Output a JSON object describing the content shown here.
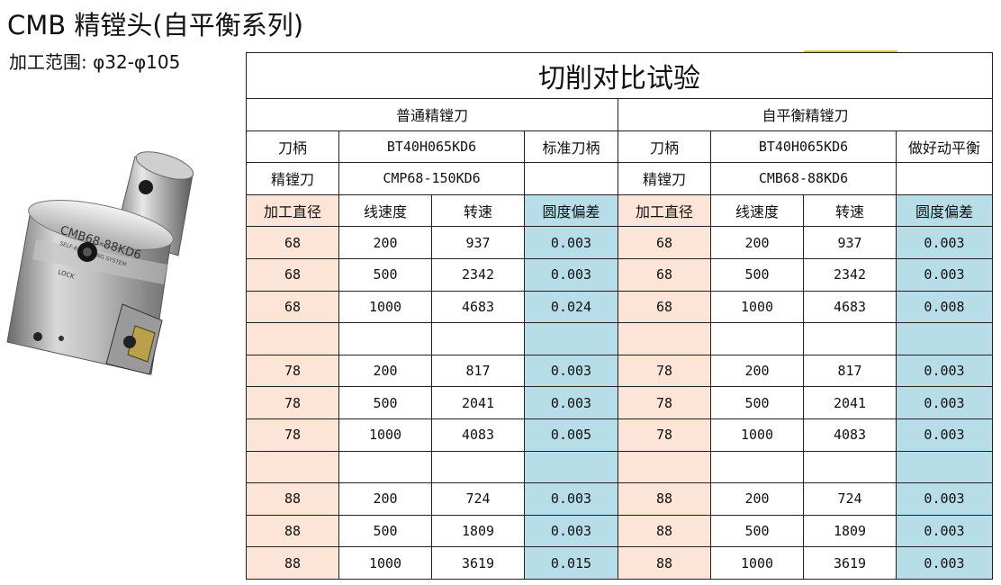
{
  "header": {
    "title": "CMB 精镗头(自平衡系列)",
    "range": "加工范围: φ32-φ105"
  },
  "product_image": {
    "engraved_text": [
      "CMB68-88KD6",
      "SELF-BALANCING SYSTEM",
      "LOCK"
    ]
  },
  "table": {
    "title": "切削对比试验",
    "left_group": "普通精镗刀",
    "right_group": "自平衡精镗刀",
    "left": {
      "holder_label": "刀柄",
      "holder_value": "BT40H065KD6",
      "holder_note": "标准刀柄",
      "cutter_label": "精镗刀",
      "cutter_value": "CMP68-150KD6",
      "cutter_note": ""
    },
    "right": {
      "holder_label": "刀柄",
      "holder_value": "BT40H065KD6",
      "holder_note": "做好动平衡",
      "cutter_label": "精镗刀",
      "cutter_value": "CMB68-88KD6",
      "cutter_note": ""
    },
    "columns": [
      "加工直径",
      "线速度",
      "转速",
      "圆度偏差",
      "加工直径",
      "线速度",
      "转速",
      "圆度偏差"
    ],
    "rows": [
      [
        "68",
        "200",
        "937",
        "0.003",
        "68",
        "200",
        "937",
        "0.003"
      ],
      [
        "68",
        "500",
        "2342",
        "0.003",
        "68",
        "500",
        "2342",
        "0.003"
      ],
      [
        "68",
        "1000",
        "4683",
        "0.024",
        "68",
        "1000",
        "4683",
        "0.008"
      ],
      [
        "",
        "",
        "",
        "",
        "",
        "",
        "",
        ""
      ],
      [
        "78",
        "200",
        "817",
        "0.003",
        "78",
        "200",
        "817",
        "0.003"
      ],
      [
        "78",
        "500",
        "2041",
        "0.003",
        "78",
        "500",
        "2041",
        "0.003"
      ],
      [
        "78",
        "1000",
        "4083",
        "0.005",
        "78",
        "1000",
        "4083",
        "0.003"
      ],
      [
        "",
        "",
        "",
        "",
        "",
        "",
        "",
        ""
      ],
      [
        "88",
        "200",
        "724",
        "0.003",
        "88",
        "200",
        "724",
        "0.003"
      ],
      [
        "88",
        "500",
        "1809",
        "0.003",
        "88",
        "500",
        "1809",
        "0.003"
      ],
      [
        "88",
        "1000",
        "3619",
        "0.015",
        "88",
        "1000",
        "3619",
        "0.003"
      ]
    ],
    "colors": {
      "diameter_bg": "#fce4d6",
      "roundness_bg": "#b7dee8",
      "accent_mark": "#f2c230"
    }
  }
}
